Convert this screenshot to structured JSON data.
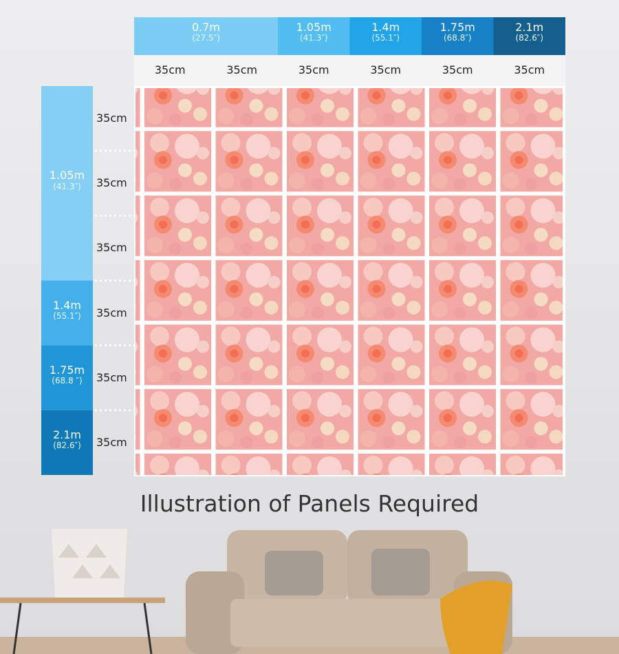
{
  "widths": [
    {
      "size": "0.7m",
      "inches": "(27.5″)"
    },
    {
      "size": "1.05m",
      "inches": "(41.3″)"
    },
    {
      "size": "1.4m",
      "inches": "(55.1″)"
    },
    {
      "size": "1.75m",
      "inches": "(68.8″)"
    },
    {
      "size": "2.1m",
      "inches": "(82.6″)"
    }
  ],
  "column_sizes": [
    "35cm",
    "35cm",
    "35cm",
    "35cm",
    "35cm",
    "35cm"
  ],
  "heights": [
    {
      "size": "1.05m",
      "inches": "(41.3″)"
    },
    {
      "size": "1.4m",
      "inches": "(55.1″)"
    },
    {
      "size": "1.75m",
      "inches": "(68.8 ″)"
    },
    {
      "size": "2.1m",
      "inches": "(82.6″)"
    }
  ],
  "row_sizes": [
    "35cm",
    "35cm",
    "35cm",
    "35cm",
    "35cm",
    "35cm"
  ],
  "title": "Illustration of Panels Required"
}
